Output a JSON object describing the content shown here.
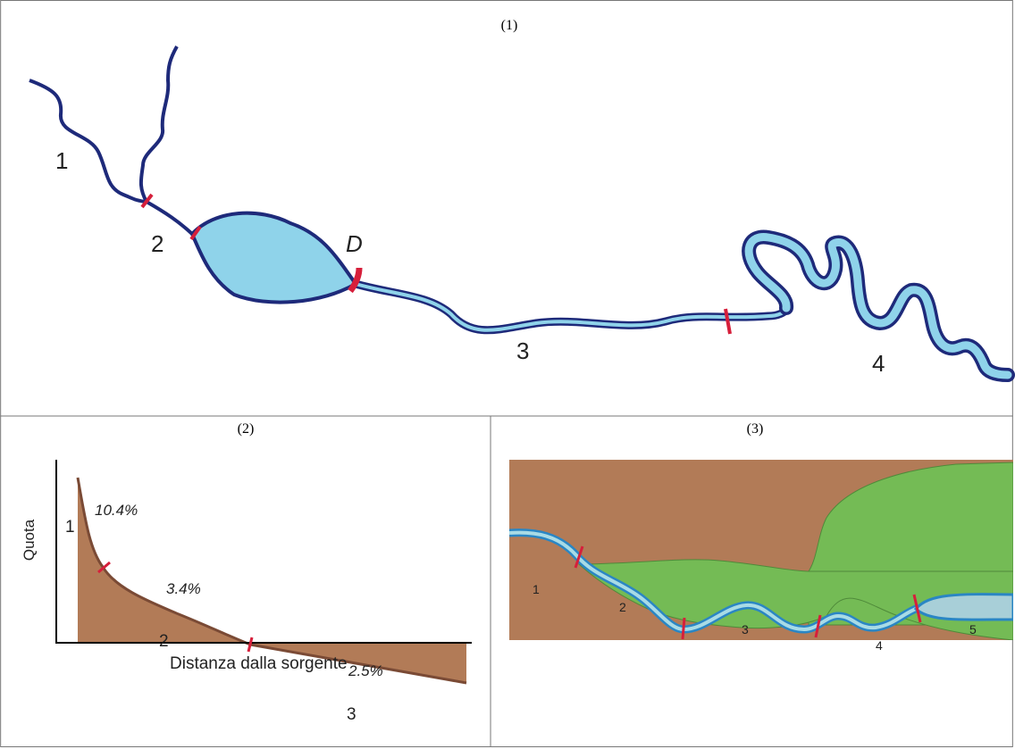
{
  "panels": [
    {
      "title": "(1)",
      "labels": {
        "s1": "1",
        "s2": "2",
        "s3": "3",
        "s4": "4",
        "dam": "D"
      }
    },
    {
      "title": "(2)",
      "ylabel": "Quota",
      "xlabel": "Distanza dalla sorgente",
      "segments": [
        "1",
        "2",
        "3"
      ],
      "slopes": [
        "10.4%",
        "3.4%",
        "2.5%"
      ]
    },
    {
      "title": "(3)",
      "segments": [
        "1",
        "2",
        "3",
        "4",
        "5"
      ]
    }
  ],
  "colors": {
    "river_outline": "#1e2a7a",
    "water": "#8fd3ea",
    "boundary": "#d61f3b",
    "terrain": "#b27b57",
    "terrain_line": "#7a4a35",
    "vegetation": "#74bb55"
  }
}
